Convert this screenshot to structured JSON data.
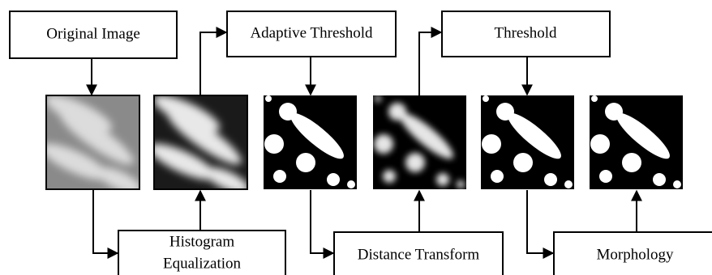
{
  "nodes": [
    {
      "label": "Original Image"
    },
    {
      "lines": [
        "Histogram",
        "Equalization"
      ]
    },
    {
      "label": "Adaptive Threshold"
    },
    {
      "label": "Distance Transform"
    },
    {
      "label": "Threshold"
    },
    {
      "label": "Morphology"
    }
  ]
}
